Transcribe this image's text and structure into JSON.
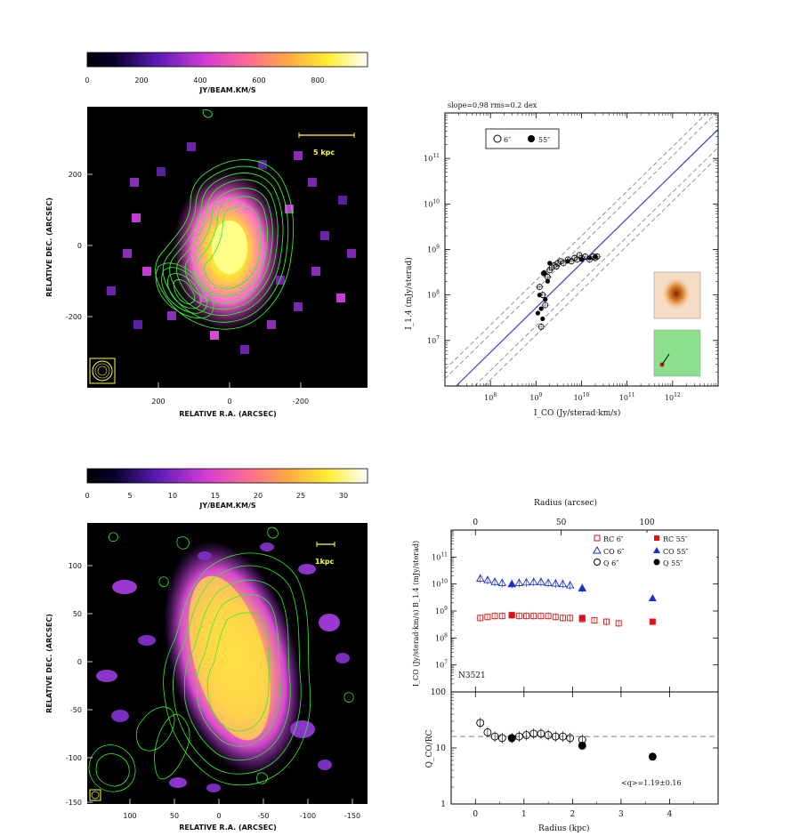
{
  "colors": {
    "green_contour": "#33ee33",
    "red": "#dd1111",
    "blue": "#1a2fcc",
    "fit_line": "#3344cc",
    "dashed": "#888888",
    "image_yellow": "#ffff44",
    "image_magenta": "#cc33cc"
  },
  "panels": {
    "top_left": {
      "cbar_ticks": [
        "0",
        "200",
        "400",
        "600",
        "800"
      ],
      "cbar_label": "JY/BEAM.KM/S",
      "scale_label": "5 kpc",
      "xlabel": "RELATIVE R.A. (ARCSEC)",
      "ylabel": "RELATIVE DEC. (ARCSEC)",
      "xticks": [
        "200",
        "0",
        "-200"
      ],
      "yticks": [
        "200",
        "0",
        "-200"
      ]
    },
    "bottom_left": {
      "cbar_ticks": [
        "0",
        "5",
        "10",
        "15",
        "20",
        "25",
        "30"
      ],
      "cbar_label": "JY/BEAM.KM/S",
      "scale_label": "1kpc",
      "xlabel": "RELATIVE R.A. (ARCSEC)",
      "ylabel": "RELATIVE DEC. (ARCSEC)",
      "xticks": [
        "100",
        "50",
        "0",
        "-50",
        "-100",
        "-150"
      ],
      "yticks": [
        "100",
        "50",
        "0",
        "-50",
        "-100",
        "-150"
      ]
    }
  },
  "chart_data": [
    {
      "type": "scatter",
      "title": "slope=0.98 rms=0.2 dex",
      "xlabel": "I_CO (Jy/sterad·km/s)",
      "ylabel": "I_1.4 (mJy/sterad)",
      "xscale": "log",
      "yscale": "log",
      "xlim": [
        10000000.0,
        10000000000000.0
      ],
      "ylim": [
        1000000.0,
        1000000000000.0
      ],
      "xtick_labels": [
        "10^8",
        "10^9",
        "10^10",
        "10^11",
        "10^12"
      ],
      "ytick_labels": [
        "10^7",
        "10^8",
        "10^9",
        "10^10",
        "10^11"
      ],
      "legend": [
        {
          "label": "6″",
          "marker": "open-circle"
        },
        {
          "label": "55″",
          "marker": "filled-circle"
        }
      ],
      "fit": {
        "slope": 0.98,
        "intercept_log": -1.1
      },
      "rms_dex": 0.2,
      "series": [
        {
          "name": "6″",
          "marker": "open-circle",
          "points": [
            [
              2000000000.0,
              350000000.0
            ],
            [
              2500000000.0,
              450000000.0
            ],
            [
              3000000000.0,
              500000000.0
            ],
            [
              3500000000.0,
              550000000.0
            ],
            [
              4000000000.0,
              500000000.0
            ],
            [
              5000000000.0,
              600000000.0
            ],
            [
              6000000000.0,
              550000000.0
            ],
            [
              7000000000.0,
              650000000.0
            ],
            [
              8000000000.0,
              600000000.0
            ],
            [
              10000000000.0,
              650000000.0
            ],
            [
              12000000000.0,
              700000000.0
            ],
            [
              15000000000.0,
              600000000.0
            ],
            [
              18000000000.0,
              700000000.0
            ],
            [
              20000000000.0,
              650000000.0
            ],
            [
              22000000000.0,
              700000000.0
            ],
            [
              1500000000.0,
              300000000.0
            ],
            [
              1800000000.0,
              250000000.0
            ],
            [
              2200000000.0,
              400000000.0
            ],
            [
              1200000000.0,
              150000000.0
            ],
            [
              1400000000.0,
              100000000.0
            ],
            [
              1300000000.0,
              20000000.0
            ],
            [
              1600000000.0,
              60000000.0
            ],
            [
              2800000000.0,
              420000000.0
            ],
            [
              9000000000.0,
              750000000.0
            ]
          ]
        },
        {
          "name": "55″",
          "marker": "filled-circle",
          "points": [
            [
              1500000000.0,
              300000000.0
            ],
            [
              1800000000.0,
              200000000.0
            ],
            [
              2000000000.0,
              500000000.0
            ],
            [
              1200000000.0,
              100000000.0
            ],
            [
              1300000000.0,
              50000000.0
            ],
            [
              1400000000.0,
              30000000.0
            ],
            [
              1600000000.0,
              80000000.0
            ],
            [
              1100000000.0,
              40000000.0
            ],
            [
              5000000000.0,
              550000000.0
            ],
            [
              10000000000.0,
              600000000.0
            ],
            [
              15000000000.0,
              650000000.0
            ],
            [
              20000000000.0,
              700000000.0
            ]
          ]
        }
      ]
    },
    {
      "type": "scatter",
      "xlabel": "Radius (kpc)",
      "x2label": "Radius (arcsec)",
      "ylabel": "I_CO (Jy/sterad·km/s) B_1.4 (mJy/sterad)",
      "xlim": [
        -0.5,
        5
      ],
      "x2ticks": [
        "0",
        "50",
        "100"
      ],
      "yscale": "log",
      "ylim": [
        1000000.0,
        1000000000000.0
      ],
      "ytick_labels": [
        "10^7",
        "10^8",
        "10^9",
        "10^10",
        "10^11"
      ],
      "annotation": "N3521",
      "legend": [
        "RC 6″",
        "RC 55″",
        "CO 6″",
        "CO 55″",
        "Q 6″",
        "Q 55″"
      ],
      "series": [
        {
          "name": "RC 6″",
          "marker": "open-square",
          "color": "#dd1111",
          "x": [
            0.1,
            0.25,
            0.4,
            0.55,
            0.75,
            0.9,
            1.05,
            1.2,
            1.35,
            1.5,
            1.65,
            1.8,
            1.95,
            2.2,
            2.45,
            2.7,
            2.95
          ],
          "y": [
            550000000.0,
            600000000.0,
            650000000.0,
            650000000.0,
            700000000.0,
            650000000.0,
            650000000.0,
            650000000.0,
            650000000.0,
            650000000.0,
            600000000.0,
            550000000.0,
            550000000.0,
            500000000.0,
            450000000.0,
            400000000.0,
            350000000.0
          ]
        },
        {
          "name": "RC 55″",
          "marker": "filled-square",
          "color": "#dd1111",
          "x": [
            0.75,
            2.2,
            3.65
          ],
          "y": [
            700000000.0,
            550000000.0,
            400000000.0
          ]
        },
        {
          "name": "CO 6″",
          "marker": "open-triangle",
          "color": "#1a2fcc",
          "x": [
            0.1,
            0.25,
            0.4,
            0.55,
            0.75,
            0.9,
            1.05,
            1.2,
            1.35,
            1.5,
            1.65,
            1.8,
            1.95,
            2.2
          ],
          "y": [
            16000000000.0,
            14000000000.0,
            12000000000.0,
            11000000000.0,
            10000000000.0,
            11000000000.0,
            11500000000.0,
            12000000000.0,
            12000000000.0,
            11000000000.0,
            10500000000.0,
            10000000000.0,
            9000000000.0,
            7000000000.0
          ]
        },
        {
          "name": "CO 55″",
          "marker": "filled-triangle",
          "color": "#1a2fcc",
          "x": [
            0.75,
            2.2,
            3.65
          ],
          "y": [
            10000000000.0,
            7000000000.0,
            3000000000.0
          ]
        }
      ]
    },
    {
      "type": "scatter",
      "xlabel": "Radius (kpc)",
      "ylabel": "Q_CO/RC",
      "xlim": [
        -0.5,
        5
      ],
      "xticks": [
        "0",
        "1",
        "2",
        "3",
        "4"
      ],
      "yscale": "log",
      "ylim": [
        1,
        100
      ],
      "ytick_labels": [
        "1",
        "10",
        "100"
      ],
      "annotation": "<q>=1.19±0.16",
      "reference_line": 16,
      "series": [
        {
          "name": "Q 6″",
          "marker": "open-circle",
          "x": [
            0.1,
            0.25,
            0.4,
            0.55,
            0.75,
            0.9,
            1.05,
            1.2,
            1.35,
            1.5,
            1.65,
            1.8,
            1.95,
            2.2
          ],
          "y": [
            28,
            19,
            16,
            15,
            15,
            16,
            17,
            18,
            18,
            17,
            16,
            16,
            15,
            14
          ]
        },
        {
          "name": "Q 55″",
          "marker": "filled-circle",
          "x": [
            0.75,
            2.2,
            3.65
          ],
          "y": [
            15,
            11,
            7
          ]
        }
      ]
    }
  ]
}
